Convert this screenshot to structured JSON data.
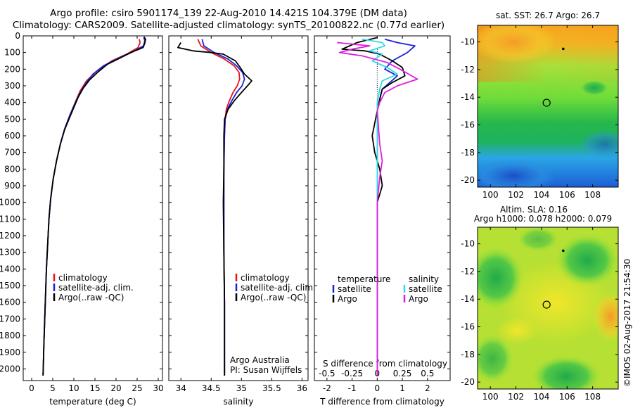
{
  "title_line1": "Argo profile: csiro 5901174_139 22-Aug-2010 14.421S 104.379E (DM data)",
  "title_line2": "Climatology: CARS2009. Satellite-adjusted climatology: synTS_20100822.nc (0.77d earlier)",
  "side_credit": "©IMOS 02-Aug-2017 21:54:30",
  "colors": {
    "climatology": "#e8141c",
    "satellite": "#1a23d6",
    "argo": "#000000",
    "salinity_sat": "#34d9e6",
    "salinity_argo": "#e01ee0"
  },
  "chart_data": [
    {
      "id": "temperature",
      "type": "line",
      "xlabel": "temperature (deg C)",
      "ylabel": "",
      "xlim": [
        -2,
        31
      ],
      "ylim": [
        2070,
        0
      ],
      "xticks": [
        0,
        5,
        10,
        15,
        20,
        25,
        30
      ],
      "xtick_labels": [
        "0",
        "5",
        "10",
        "15",
        "20",
        "25",
        "30"
      ],
      "yticks": [
        0,
        100,
        200,
        300,
        400,
        500,
        600,
        700,
        800,
        900,
        1000,
        1100,
        1200,
        1300,
        1400,
        1500,
        1600,
        1700,
        1800,
        1900,
        2000
      ],
      "ytick_labels": [
        "0",
        "100",
        "200",
        "300",
        "400",
        "500",
        "600",
        "700",
        "800",
        "900",
        "1000",
        "1100",
        "1200",
        "1300",
        "1400",
        "1500",
        "1600",
        "1700",
        "1800",
        "1900",
        "2000"
      ],
      "legend": [
        "climatology",
        "satellite-adj. clim.",
        "Argo(..raw -QC)"
      ],
      "series": [
        {
          "name": "climatology",
          "color_key": "climatology",
          "points": [
            [
              25.5,
              20
            ],
            [
              25.7,
              40
            ],
            [
              25.2,
              70
            ],
            [
              22.5,
              110
            ],
            [
              19,
              150
            ],
            [
              15.5,
              210
            ],
            [
              13,
              270
            ],
            [
              11.5,
              330
            ],
            [
              10.3,
              400
            ],
            [
              9,
              480
            ],
            [
              7.8,
              560
            ],
            [
              6.8,
              650
            ],
            [
              5.9,
              750
            ],
            [
              5.1,
              860
            ],
            [
              4.5,
              980
            ],
            [
              4.1,
              1100
            ],
            [
              3.8,
              1250
            ],
            [
              3.5,
              1400
            ],
            [
              3.3,
              1550
            ],
            [
              3.1,
              1700
            ],
            [
              2.9,
              1850
            ],
            [
              2.8,
              1950
            ],
            [
              2.7,
              2040
            ]
          ]
        },
        {
          "name": "satellite-adj. clim.",
          "color_key": "satellite",
          "points": [
            [
              26.6,
              10
            ],
            [
              26.8,
              30
            ],
            [
              26.5,
              60
            ],
            [
              24,
              95
            ],
            [
              20.5,
              135
            ],
            [
              17,
              180
            ],
            [
              14.5,
              230
            ],
            [
              12.7,
              290
            ],
            [
              11.3,
              350
            ],
            [
              10.2,
              410
            ],
            [
              9,
              480
            ],
            [
              7.8,
              560
            ],
            [
              6.8,
              650
            ],
            [
              5.9,
              750
            ],
            [
              5.1,
              860
            ],
            [
              4.5,
              980
            ],
            [
              4.1,
              1100
            ],
            [
              3.8,
              1250
            ],
            [
              3.5,
              1400
            ],
            [
              3.3,
              1550
            ],
            [
              3.1,
              1700
            ],
            [
              2.9,
              1850
            ],
            [
              2.8,
              1950
            ],
            [
              2.7,
              2040
            ]
          ]
        },
        {
          "name": "Argo(..raw -QC)",
          "color_key": "argo",
          "points": [
            [
              26.6,
              5
            ],
            [
              27,
              20
            ],
            [
              26.8,
              45
            ],
            [
              26.4,
              70
            ],
            [
              23.5,
              100
            ],
            [
              20.8,
              135
            ],
            [
              18,
              170
            ],
            [
              15.8,
              215
            ],
            [
              13.7,
              265
            ],
            [
              12.2,
              315
            ],
            [
              11,
              370
            ],
            [
              10,
              430
            ],
            [
              9,
              490
            ],
            [
              7.8,
              565
            ],
            [
              6.8,
              650
            ],
            [
              5.9,
              750
            ],
            [
              5.1,
              860
            ],
            [
              4.5,
              980
            ],
            [
              4.1,
              1100
            ],
            [
              3.8,
              1250
            ],
            [
              3.5,
              1400
            ],
            [
              3.3,
              1550
            ],
            [
              3.1,
              1700
            ],
            [
              2.9,
              1850
            ],
            [
              2.8,
              1950
            ],
            [
              2.7,
              2040
            ]
          ]
        }
      ]
    },
    {
      "id": "salinity",
      "type": "line",
      "xlabel": "salinity",
      "xlim": [
        33.8,
        36.1
      ],
      "ylim": [
        2070,
        0
      ],
      "xticks": [
        34,
        34.5,
        35,
        35.5,
        36
      ],
      "xtick_labels": [
        "34",
        "34.5",
        "35",
        "35.5",
        "36"
      ],
      "legend": [
        "climatology",
        "satellite-adj. clim.",
        "Argo(..raw -QC)"
      ],
      "annotation": [
        "Argo Australia",
        "PI: Susan Wijffels"
      ],
      "series": [
        {
          "name": "climatology",
          "color_key": "climatology",
          "points": [
            [
              34.28,
              20
            ],
            [
              34.33,
              60
            ],
            [
              34.5,
              100
            ],
            [
              34.72,
              140
            ],
            [
              34.88,
              180
            ],
            [
              34.96,
              220
            ],
            [
              34.97,
              260
            ],
            [
              34.93,
              300
            ],
            [
              34.86,
              340
            ],
            [
              34.8,
              390
            ],
            [
              34.75,
              440
            ],
            [
              34.73,
              500
            ],
            [
              34.72,
              600
            ],
            [
              34.71,
              800
            ],
            [
              34.71,
              1000
            ],
            [
              34.71,
              1300
            ],
            [
              34.72,
              1600
            ],
            [
              34.72,
              1900
            ],
            [
              34.72,
              2040
            ]
          ]
        },
        {
          "name": "satellite-adj. clim.",
          "color_key": "satellite",
          "points": [
            [
              34.35,
              20
            ],
            [
              34.38,
              60
            ],
            [
              34.55,
              100
            ],
            [
              34.78,
              140
            ],
            [
              34.92,
              180
            ],
            [
              35.02,
              220
            ],
            [
              35.05,
              260
            ],
            [
              35.01,
              300
            ],
            [
              34.92,
              340
            ],
            [
              34.84,
              390
            ],
            [
              34.77,
              440
            ],
            [
              34.73,
              500
            ],
            [
              34.72,
              600
            ],
            [
              34.71,
              800
            ],
            [
              34.71,
              1000
            ],
            [
              34.71,
              1300
            ],
            [
              34.72,
              1600
            ],
            [
              34.72,
              1900
            ],
            [
              34.72,
              2040
            ]
          ]
        },
        {
          "name": "Argo(..raw -QC)",
          "color_key": "argo",
          "points": [
            [
              34.0,
              40
            ],
            [
              33.95,
              70
            ],
            [
              34.2,
              90
            ],
            [
              34.5,
              100
            ],
            [
              34.7,
              110
            ],
            [
              34.9,
              150
            ],
            [
              34.98,
              190
            ],
            [
              35.05,
              230
            ],
            [
              35.17,
              270
            ],
            [
              35.1,
              300
            ],
            [
              35.0,
              340
            ],
            [
              34.88,
              390
            ],
            [
              34.78,
              440
            ],
            [
              34.72,
              500
            ],
            [
              34.71,
              600
            ],
            [
              34.71,
              800
            ],
            [
              34.7,
              1000
            ],
            [
              34.71,
              1300
            ],
            [
              34.72,
              1600
            ],
            [
              34.72,
              1900
            ],
            [
              34.72,
              2040
            ]
          ]
        }
      ]
    },
    {
      "id": "differences",
      "type": "line",
      "xlabel": "T difference from climatology",
      "top_xlabel": "S difference from climatology",
      "xlim": [
        -2.5,
        2.9
      ],
      "ylim": [
        2070,
        0
      ],
      "xticks": [
        -2,
        -1,
        0,
        1,
        2
      ],
      "xtick_labels": [
        "-2",
        "-1",
        "0",
        "1",
        "2"
      ],
      "top_xticks": [
        -2,
        -1,
        0,
        1,
        2
      ],
      "top_xtick_labels": [
        "-0.5",
        "-0.25",
        "0",
        "0.25",
        "0.5"
      ],
      "legend_temperature": [
        "temperature",
        "satellite",
        "Argo"
      ],
      "legend_salinity": [
        "salinity",
        "satellite",
        "Argo"
      ],
      "series": [
        {
          "name": "temperature satellite",
          "color_key": "satellite",
          "points": [
            [
              0.3,
              20
            ],
            [
              0.8,
              40
            ],
            [
              1.5,
              60
            ],
            [
              1.2,
              100
            ],
            [
              0.6,
              150
            ],
            [
              0.3,
              200
            ],
            [
              0.8,
              240
            ],
            [
              0.5,
              280
            ],
            [
              0.2,
              320
            ],
            [
              0.1,
              380
            ],
            [
              0,
              450
            ],
            [
              0,
              800
            ],
            [
              0,
              1200
            ],
            [
              0,
              1600
            ],
            [
              0,
              2040
            ]
          ]
        },
        {
          "name": "temperature Argo",
          "color_key": "argo",
          "points": [
            [
              0,
              10
            ],
            [
              -0.8,
              40
            ],
            [
              -1.4,
              80
            ],
            [
              -0.5,
              90
            ],
            [
              0.1,
              110
            ],
            [
              0.6,
              150
            ],
            [
              1.0,
              190
            ],
            [
              1.1,
              240
            ],
            [
              0.6,
              280
            ],
            [
              0.2,
              320
            ],
            [
              0.1,
              380
            ],
            [
              0,
              450
            ],
            [
              -0.2,
              600
            ],
            [
              -0.1,
              700
            ],
            [
              0.1,
              800
            ],
            [
              0.2,
              900
            ],
            [
              0,
              1000
            ],
            [
              0,
              1200
            ],
            [
              0,
              1600
            ],
            [
              0,
              2040
            ]
          ]
        },
        {
          "name": "salinity satellite",
          "color_key": "salinity_sat",
          "points": [
            [
              -0.6,
              20
            ],
            [
              0.2,
              40
            ],
            [
              0.3,
              60
            ],
            [
              -0.3,
              90
            ],
            [
              0.2,
              110
            ],
            [
              -0.2,
              150
            ],
            [
              0.4,
              190
            ],
            [
              0.8,
              230
            ],
            [
              0.2,
              270
            ],
            [
              0.1,
              320
            ],
            [
              0,
              400
            ],
            [
              0,
              800
            ],
            [
              0,
              1200
            ],
            [
              0,
              1600
            ],
            [
              0,
              2040
            ]
          ]
        },
        {
          "name": "salinity Argo",
          "color_key": "salinity_argo",
          "points": [
            [
              -1.6,
              40
            ],
            [
              -0.3,
              60
            ],
            [
              -1.0,
              80
            ],
            [
              -1.5,
              100
            ],
            [
              -0.6,
              120
            ],
            [
              0.4,
              160
            ],
            [
              0.9,
              200
            ],
            [
              1.6,
              260
            ],
            [
              0.8,
              300
            ],
            [
              0.3,
              340
            ],
            [
              0.1,
              400
            ],
            [
              0,
              450
            ],
            [
              0.1,
              650
            ],
            [
              0.2,
              750
            ],
            [
              0.1,
              850
            ],
            [
              0,
              1000
            ],
            [
              0,
              1300
            ],
            [
              0,
              1600
            ],
            [
              0,
              2040
            ]
          ]
        }
      ]
    },
    {
      "id": "sst-map",
      "type": "heatmap",
      "title": "sat. SST: 26.7 Argo: 26.7",
      "xlim": [
        99,
        110
      ],
      "ylim": [
        -20.5,
        -8.8
      ],
      "xticks": [
        100,
        102,
        104,
        106,
        108
      ],
      "xtick_labels": [
        "100",
        "102",
        "104",
        "106",
        "108"
      ],
      "yticks": [
        -10,
        -12,
        -14,
        -16,
        -18,
        -20
      ],
      "ytick_labels": [
        "-10",
        "-12",
        "-14",
        "-16",
        "-18",
        "-20"
      ],
      "markers": [
        {
          "lon": 105.7,
          "lat": -10.5,
          "kind": "dot"
        },
        {
          "lon": 104.4,
          "lat": -14.4,
          "kind": "circle"
        }
      ]
    },
    {
      "id": "sla-map",
      "type": "heatmap",
      "title": "Altim. SLA: 0.16",
      "subtitle": "Argo h1000: 0.078 h2000: 0.079",
      "xlim": [
        99,
        110
      ],
      "ylim": [
        -20.5,
        -8.8
      ],
      "xticks": [
        100,
        102,
        104,
        106,
        108
      ],
      "xtick_labels": [
        "100",
        "102",
        "104",
        "106",
        "108"
      ],
      "yticks": [
        -10,
        -12,
        -14,
        -16,
        -18,
        -20
      ],
      "ytick_labels": [
        "-10",
        "-12",
        "-14",
        "-16",
        "-18",
        "-20"
      ],
      "markers": [
        {
          "lon": 105.7,
          "lat": -10.5,
          "kind": "dot"
        },
        {
          "lon": 104.4,
          "lat": -14.4,
          "kind": "circle"
        }
      ]
    }
  ]
}
